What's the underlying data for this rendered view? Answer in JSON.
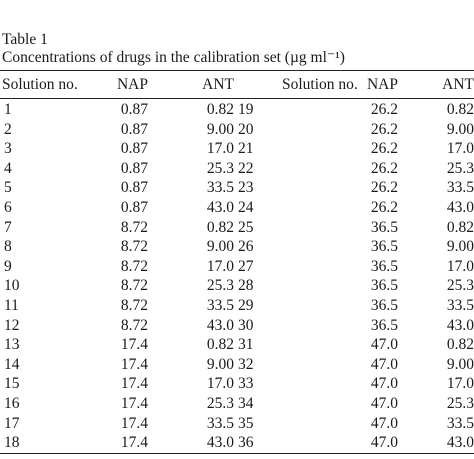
{
  "table": {
    "label": "Table 1",
    "caption": "Concentrations of drugs in the calibration set (µg ml⁻¹)",
    "columns": [
      "Solution no.",
      "NAP",
      "ANT",
      "Solution no.",
      "NAP",
      "ANT"
    ],
    "rows": [
      [
        "1",
        "0.87",
        "0.82",
        "19",
        "26.2",
        "0.82"
      ],
      [
        "2",
        "0.87",
        "9.00",
        "20",
        "26.2",
        "9.00"
      ],
      [
        "3",
        "0.87",
        "17.0",
        "21",
        "26.2",
        "17.0"
      ],
      [
        "4",
        "0.87",
        "25.3",
        "22",
        "26.2",
        "25.3"
      ],
      [
        "5",
        "0.87",
        "33.5",
        "23",
        "26.2",
        "33.5"
      ],
      [
        "6",
        "0.87",
        "43.0",
        "24",
        "26.2",
        "43.0"
      ],
      [
        "7",
        "8.72",
        "0.82",
        "25",
        "36.5",
        "0.82"
      ],
      [
        "8",
        "8.72",
        "9.00",
        "26",
        "36.5",
        "9.00"
      ],
      [
        "9",
        "8.72",
        "17.0",
        "27",
        "36.5",
        "17.0"
      ],
      [
        "10",
        "8.72",
        "25.3",
        "28",
        "36.5",
        "25.3"
      ],
      [
        "11",
        "8.72",
        "33.5",
        "29",
        "36.5",
        "33.5"
      ],
      [
        "12",
        "8.72",
        "43.0",
        "30",
        "36.5",
        "43.0"
      ],
      [
        "13",
        "17.4",
        "0.82",
        "31",
        "47.0",
        "0.82"
      ],
      [
        "14",
        "17.4",
        "9.00",
        "32",
        "47.0",
        "9.00"
      ],
      [
        "15",
        "17.4",
        "17.0",
        "33",
        "47.0",
        "17.0"
      ],
      [
        "16",
        "17.4",
        "25.3",
        "34",
        "47.0",
        "25.3"
      ],
      [
        "17",
        "17.4",
        "33.5",
        "35",
        "47.0",
        "33.5"
      ],
      [
        "18",
        "17.4",
        "43.0",
        "36",
        "47.0",
        "43.0"
      ]
    ]
  }
}
